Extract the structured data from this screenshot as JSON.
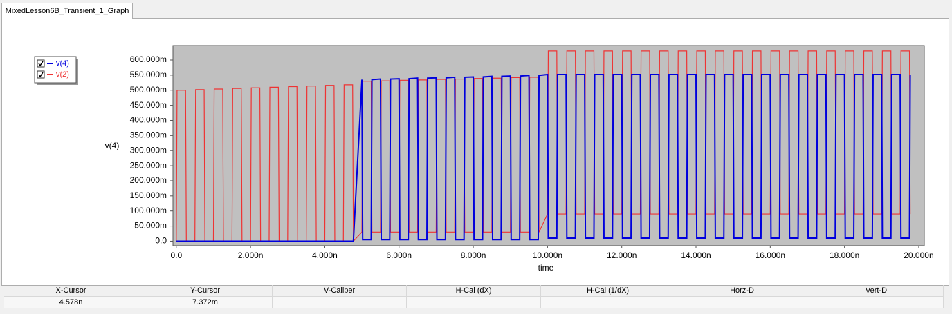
{
  "tab": {
    "title": "MixedLesson6B_Transient_1_Graph"
  },
  "chart_data": {
    "type": "line",
    "x_label": "time",
    "y_label": "v(4)",
    "xlim": [
      -0.09,
      20.15
    ],
    "ylim": [
      -15,
      648
    ],
    "xticks": [
      {
        "value": 0,
        "label": "0.0"
      },
      {
        "value": 2,
        "label": "2.000n"
      },
      {
        "value": 4,
        "label": "4.000n"
      },
      {
        "value": 6,
        "label": "6.000n"
      },
      {
        "value": 8,
        "label": "8.000n"
      },
      {
        "value": 10,
        "label": "10.000n"
      },
      {
        "value": 12,
        "label": "12.000n"
      },
      {
        "value": 14,
        "label": "14.000n"
      },
      {
        "value": 16,
        "label": "16.000n"
      },
      {
        "value": 18,
        "label": "18.000n"
      },
      {
        "value": 20,
        "label": "20.000n"
      }
    ],
    "yticks": [
      {
        "value": 0,
        "label": "0.0"
      },
      {
        "value": 50,
        "label": "50.000m"
      },
      {
        "value": 100,
        "label": "100.000m"
      },
      {
        "value": 150,
        "label": "150.000m"
      },
      {
        "value": 200,
        "label": "200.000m"
      },
      {
        "value": 250,
        "label": "250.000m"
      },
      {
        "value": 300,
        "label": "300.000m"
      },
      {
        "value": 350,
        "label": "350.000m"
      },
      {
        "value": 400,
        "label": "400.000m"
      },
      {
        "value": 450,
        "label": "450.000m"
      },
      {
        "value": 500,
        "label": "500.000m"
      },
      {
        "value": 550,
        "label": "550.000m"
      },
      {
        "value": 600,
        "label": "600.000m"
      }
    ],
    "x": [
      0,
      0.02,
      0.25,
      0.27,
      0.5,
      0.52,
      0.75,
      0.77,
      1,
      1.02,
      1.25,
      1.27,
      1.5,
      1.52,
      1.75,
      1.77,
      2,
      2.02,
      2.25,
      2.27,
      2.5,
      2.52,
      2.75,
      2.77,
      3,
      3.02,
      3.25,
      3.27,
      3.5,
      3.52,
      3.75,
      3.77,
      4,
      4.02,
      4.25,
      4.27,
      4.5,
      4.52,
      4.75,
      4.77,
      5,
      5.02,
      5.25,
      5.27,
      5.5,
      5.52,
      5.75,
      5.77,
      6,
      6.02,
      6.25,
      6.27,
      6.5,
      6.52,
      6.75,
      6.77,
      7,
      7.02,
      7.25,
      7.27,
      7.5,
      7.52,
      7.75,
      7.77,
      8,
      8.02,
      8.25,
      8.27,
      8.5,
      8.52,
      8.75,
      8.77,
      9,
      9.02,
      9.25,
      9.27,
      9.5,
      9.52,
      9.75,
      9.77,
      10,
      10.02,
      10.25,
      10.27,
      10.5,
      10.52,
      10.75,
      10.77,
      11,
      11.02,
      11.25,
      11.27,
      11.5,
      11.52,
      11.75,
      11.77,
      12,
      12.02,
      12.25,
      12.27,
      12.5,
      12.52,
      12.75,
      12.77,
      13,
      13.02,
      13.25,
      13.27,
      13.5,
      13.52,
      13.75,
      13.77,
      14,
      14.02,
      14.25,
      14.27,
      14.5,
      14.52,
      14.75,
      14.77,
      15,
      15.02,
      15.25,
      15.27,
      15.5,
      15.52,
      15.75,
      15.77,
      16,
      16.02,
      16.25,
      16.27,
      16.5,
      16.52,
      16.75,
      16.77,
      17,
      17.02,
      17.25,
      17.27,
      17.5,
      17.52,
      17.75,
      17.77,
      18,
      18.02,
      18.25,
      18.27,
      18.5,
      18.52,
      18.75,
      18.77,
      19,
      19.02,
      19.25,
      19.27,
      19.5,
      19.52,
      19.75,
      19.77
    ],
    "series": [
      {
        "name": "v(4)",
        "color": "#0000dd",
        "values": [
          0,
          0,
          0,
          0,
          0,
          0,
          0,
          0,
          0,
          0,
          0,
          0,
          0,
          0,
          0,
          0,
          0,
          0,
          0,
          0,
          0,
          0,
          0,
          0,
          0,
          0,
          0,
          0,
          0,
          0,
          0,
          0,
          0,
          0,
          0,
          0,
          0,
          0,
          0,
          0,
          535,
          5,
          5,
          535,
          537,
          5,
          5,
          537,
          538,
          5,
          5,
          538,
          540,
          5,
          5,
          540,
          541,
          5,
          5,
          541,
          543,
          5,
          5,
          543,
          544,
          5,
          5,
          544,
          546,
          5,
          5,
          546,
          547,
          5,
          5,
          547,
          549,
          5,
          5,
          549,
          552,
          10,
          10,
          552,
          552,
          10,
          10,
          552,
          552,
          10,
          10,
          552,
          552,
          10,
          10,
          552,
          552,
          10,
          10,
          552,
          552,
          10,
          10,
          552,
          552,
          10,
          10,
          552,
          552,
          10,
          10,
          552,
          552,
          10,
          10,
          552,
          552,
          10,
          10,
          552,
          552,
          10,
          10,
          552,
          552,
          10,
          10,
          552,
          552,
          10,
          10,
          552,
          552,
          10,
          10,
          552,
          552,
          10,
          10,
          552,
          552,
          10,
          10,
          552,
          552,
          10,
          10,
          552,
          552,
          10,
          10,
          552,
          552,
          10,
          10,
          552,
          552,
          10,
          10,
          552
        ]
      },
      {
        "name": "v(2)",
        "color": "#ee3333",
        "values": [
          0,
          500,
          500,
          0,
          0,
          502,
          502,
          0,
          0,
          504,
          504,
          0,
          0,
          506,
          506,
          0,
          0,
          508,
          508,
          0,
          0,
          510,
          510,
          0,
          0,
          512,
          512,
          0,
          0,
          514,
          514,
          0,
          0,
          516,
          516,
          0,
          0,
          518,
          518,
          0,
          30,
          530,
          530,
          30,
          30,
          531,
          531,
          30,
          30,
          533,
          533,
          30,
          30,
          534,
          534,
          30,
          30,
          536,
          536,
          30,
          30,
          537,
          537,
          30,
          30,
          539,
          539,
          30,
          30,
          540,
          540,
          30,
          30,
          542,
          542,
          30,
          30,
          543,
          543,
          30,
          90,
          630,
          630,
          90,
          90,
          630,
          630,
          90,
          90,
          630,
          630,
          90,
          90,
          630,
          630,
          90,
          90,
          630,
          630,
          90,
          90,
          630,
          630,
          90,
          90,
          630,
          630,
          90,
          90,
          630,
          630,
          90,
          90,
          630,
          630,
          90,
          90,
          630,
          630,
          90,
          90,
          630,
          630,
          90,
          90,
          630,
          630,
          90,
          90,
          630,
          630,
          90,
          90,
          630,
          630,
          90,
          90,
          630,
          630,
          90,
          90,
          630,
          630,
          90,
          90,
          630,
          630,
          90,
          90,
          630,
          630,
          90,
          90,
          630,
          630,
          90,
          90,
          630,
          630,
          90
        ]
      }
    ]
  },
  "status_bar": {
    "headers": [
      "X-Cursor",
      "Y-Cursor",
      "V-Caliper",
      "H-Cal (dX)",
      "H-Cal (1/dX)",
      "Horz-D",
      "Vert-D"
    ],
    "values": [
      "4.578n",
      "7.372m"
    ]
  }
}
